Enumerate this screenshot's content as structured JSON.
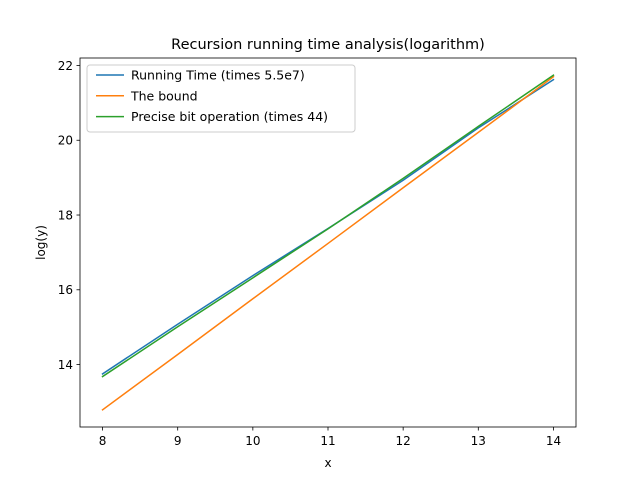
{
  "chart_data": {
    "type": "line",
    "title": "Recursion running time analysis(logarithm)",
    "xlabel": "x",
    "ylabel": "log(y)",
    "xlim": [
      7.7,
      14.3
    ],
    "ylim": [
      12.33,
      22.2
    ],
    "xticks": [
      8,
      9,
      10,
      11,
      12,
      13,
      14
    ],
    "yticks": [
      14,
      16,
      18,
      20,
      22
    ],
    "grid": false,
    "legend_position": "upper-left",
    "x": [
      8,
      9,
      10,
      11,
      12,
      13,
      14
    ],
    "series": [
      {
        "name": "Running Time (times 5.5e7)",
        "color": "#1f77b4",
        "values": [
          13.75,
          15.08,
          16.38,
          17.64,
          18.93,
          20.33,
          21.62
        ]
      },
      {
        "name": "The bound",
        "color": "#ff7f0e",
        "values": [
          12.79,
          14.27,
          15.76,
          17.24,
          18.73,
          20.21,
          21.7
        ]
      },
      {
        "name": "Precise bit operation (times 44)",
        "color": "#2ca02c",
        "values": [
          13.68,
          15.01,
          16.32,
          17.63,
          18.98,
          20.37,
          21.74
        ]
      }
    ]
  }
}
